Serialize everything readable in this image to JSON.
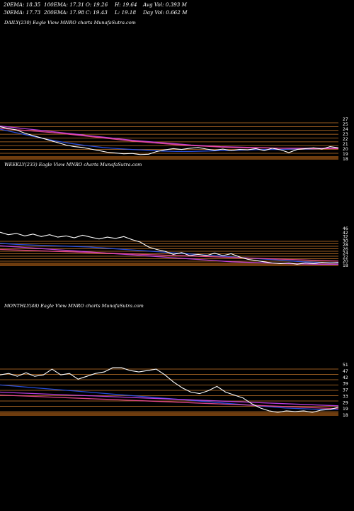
{
  "header": {
    "ema20": "20EMA: 18.35",
    "ema100": "100EMA: 17.31",
    "open": "O: 19.26",
    "high": "H: 19.64",
    "avgvol": "Avg Vol: 0.393  M",
    "ema30": "30EMA: 17.73",
    "ema200": "200EMA: 17.98",
    "close": "C: 19.43",
    "low": "L: 19.18",
    "dayvol": "Day Vol: 0.662  M"
  },
  "colors": {
    "background": "#000000",
    "price": "#ffffff",
    "ema_blue": "#2b59ff",
    "ema_purple": "#d648ff",
    "ema_pink": "#ff4fa0",
    "level_line": "#c8782a",
    "level_fill": "#8a4b12"
  },
  "chart_data": [
    {
      "type": "line",
      "title": "DAILY(230) Eagle   View  MNRO charts MunafaSutra.com",
      "y_ticks": [
        "27",
        "25",
        "24",
        "23",
        "22",
        "21",
        "20",
        "19",
        "18"
      ],
      "series": [
        {
          "color": "#ffffff",
          "values": [
            25.6,
            25.2,
            24.8,
            24.0,
            23.4,
            22.8,
            22.2,
            21.6,
            21.0,
            20.6,
            20.4,
            20.0,
            19.6,
            19.2,
            19.0,
            18.8,
            18.9,
            18.6,
            18.7,
            19.4,
            19.8,
            20.1,
            19.9,
            20.2,
            20.4,
            20.0,
            19.7,
            20.0,
            19.6,
            19.9,
            19.8,
            20.1,
            19.6,
            20.2,
            19.8,
            19.1,
            19.9,
            20.1,
            20.3,
            20.0,
            20.6,
            20.3
          ]
        },
        {
          "color": "#2b59ff",
          "values": [
            25.0,
            24.2,
            23.4,
            22.6,
            21.9,
            21.3,
            20.8,
            20.4,
            20.1,
            19.9,
            19.7,
            19.5,
            19.4,
            19.4,
            19.5,
            19.6,
            19.7,
            19.8,
            19.9,
            19.9,
            20.0,
            20.0,
            20.1,
            20.2
          ]
        },
        {
          "color": "#d648ff",
          "values": [
            25.8,
            25.4,
            25.0,
            24.6,
            24.2,
            23.8,
            23.4,
            23.0,
            22.6,
            22.2,
            21.9,
            21.6,
            21.3,
            21.0,
            20.8,
            20.6,
            20.5,
            20.4,
            20.3,
            20.2,
            20.2,
            20.2,
            20.2,
            20.2
          ]
        },
        {
          "color": "#ff4fa0",
          "values": [
            25.2,
            24.9,
            24.6,
            24.3,
            24.0,
            23.6,
            23.2,
            22.8,
            22.4,
            22.0,
            21.7,
            21.4,
            21.1,
            20.9,
            20.7,
            20.5,
            20.4,
            20.3,
            20.3,
            20.2,
            20.2,
            20.1,
            20.1,
            20.1
          ]
        }
      ]
    },
    {
      "type": "line",
      "title": "WEEKLY(233) Eagle   View  MNRO charts MunafaSutra.com",
      "y_ticks": [
        "46",
        "42",
        "32",
        "30",
        "28",
        "26",
        "24",
        "22",
        "20",
        "18"
      ],
      "series": [
        {
          "color": "#ffffff",
          "values": [
            44.0,
            42.0,
            43.0,
            41.0,
            42.5,
            40.5,
            42.0,
            40.0,
            41.0,
            39.5,
            41.5,
            40.0,
            38.5,
            40.0,
            39.0,
            40.5,
            38.0,
            36.0,
            32.0,
            30.0,
            28.5,
            26.0,
            27.5,
            25.0,
            26.0,
            25.0,
            27.0,
            25.0,
            26.5,
            24.0,
            22.0,
            21.0,
            20.0,
            19.0,
            18.5,
            19.0,
            18.0,
            19.0,
            18.5,
            19.5,
            19.0,
            19.5
          ]
        },
        {
          "color": "#2b59ff",
          "values": [
            35.0,
            34.0,
            33.5,
            33.0,
            32.5,
            32.0,
            31.0,
            30.0,
            29.0,
            28.0,
            27.0,
            26.0,
            25.0,
            24.0,
            23.0,
            22.0,
            21.0,
            20.0,
            19.5,
            19.0
          ]
        },
        {
          "color": "#d648ff",
          "values": [
            33.0,
            32.0,
            31.0,
            30.0,
            29.0,
            28.0,
            27.0,
            26.0,
            25.0,
            24.0,
            23.0,
            22.0,
            21.0,
            20.0,
            19.5,
            19.0,
            18.5,
            18.2,
            18.0,
            18.0
          ]
        },
        {
          "color": "#ff4fa0",
          "values": [
            30.0,
            29.5,
            29.0,
            28.5,
            28.0,
            27.5,
            27.0,
            26.5,
            26.0,
            25.5,
            25.0,
            24.5,
            24.0,
            23.5,
            23.0,
            22.5,
            22.0,
            21.5,
            21.0,
            20.5
          ]
        }
      ]
    },
    {
      "type": "line",
      "title": "MONTHLY(48) Eagle   View  MNRO charts MunafaSutra.com",
      "y_ticks": [
        "51",
        "47",
        "42",
        "39",
        "37",
        "33",
        "29",
        "19",
        "18"
      ],
      "series": [
        {
          "color": "#ffffff",
          "values": [
            45.0,
            46.0,
            44.0,
            46.5,
            44.0,
            45.0,
            49.0,
            45.0,
            46.0,
            42.0,
            44.0,
            46.0,
            47.0,
            50.0,
            50.0,
            48.0,
            47.0,
            48.0,
            49.0,
            45.0,
            40.0,
            36.0,
            33.0,
            32.0,
            34.0,
            37.0,
            33.0,
            31.0,
            29.0,
            25.0,
            22.0,
            20.0,
            19.0,
            20.0,
            19.5,
            20.0,
            19.0,
            20.5,
            21.0,
            22.5
          ]
        },
        {
          "color": "#2b59ff",
          "values": [
            38.0,
            37.0,
            36.0,
            35.0,
            34.0,
            33.0,
            32.0,
            31.0,
            30.0,
            29.0,
            28.0,
            27.0,
            26.0,
            25.0,
            24.0,
            23.0,
            22.0,
            21.5,
            21.0,
            21.0
          ]
        },
        {
          "color": "#d648ff",
          "values": [
            33.0,
            32.5,
            32.0,
            31.5,
            31.0,
            30.5,
            30.0,
            29.5,
            29.0,
            28.5,
            28.0,
            27.5,
            27.0,
            26.5,
            26.0,
            25.5,
            25.0,
            24.5,
            24.0,
            23.5
          ]
        },
        {
          "color": "#ff4fa0",
          "values": [
            31.0,
            30.5,
            30.0,
            29.5,
            29.0,
            28.5,
            28.0,
            27.5,
            27.0,
            26.5,
            26.0,
            25.5,
            25.0,
            24.5,
            24.0,
            23.5,
            23.0,
            22.5,
            22.0,
            21.5
          ]
        }
      ]
    }
  ]
}
